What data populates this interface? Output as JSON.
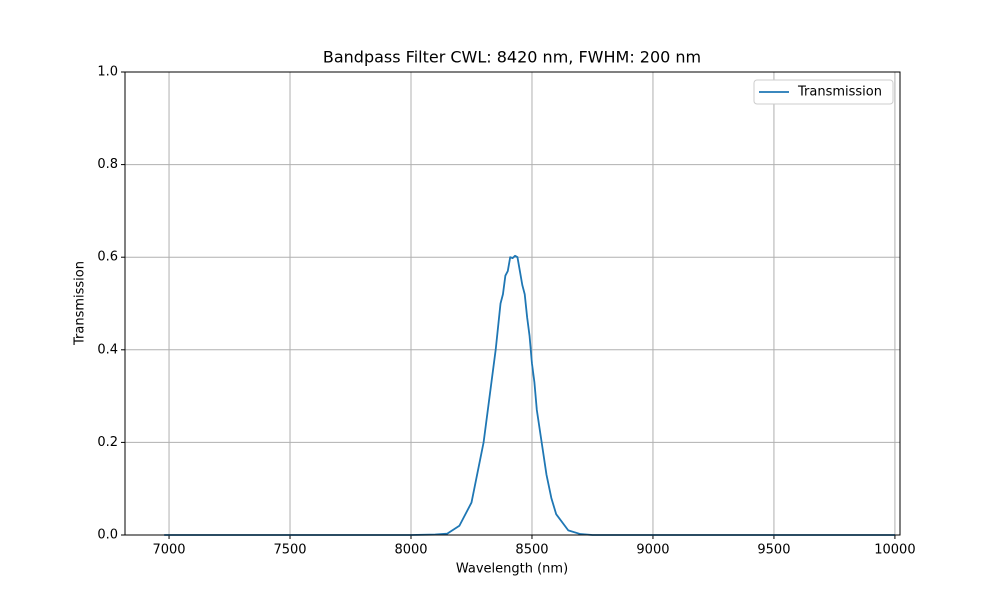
{
  "chart_data": {
    "type": "line",
    "title": "Bandpass Filter CWL: 8420 nm, FWHM: 200 nm",
    "xlabel": "Wavelength (nm)",
    "ylabel": "Transmission",
    "x": [
      6980,
      7500,
      8000,
      8100,
      8150,
      8200,
      8250,
      8300,
      8330,
      8350,
      8370,
      8380,
      8390,
      8400,
      8410,
      8420,
      8430,
      8440,
      8450,
      8460,
      8470,
      8480,
      8490,
      8500,
      8510,
      8520,
      8540,
      8560,
      8580,
      8600,
      8650,
      8700,
      8750,
      9000,
      9500,
      10000
    ],
    "series": [
      {
        "name": "Transmission",
        "color": "#1f77b4",
        "values": [
          0,
          0,
          0,
          0.001,
          0.003,
          0.02,
          0.07,
          0.2,
          0.32,
          0.4,
          0.5,
          0.52,
          0.56,
          0.57,
          0.6,
          0.598,
          0.603,
          0.6,
          0.57,
          0.54,
          0.52,
          0.47,
          0.43,
          0.37,
          0.33,
          0.27,
          0.2,
          0.13,
          0.08,
          0.045,
          0.01,
          0.002,
          0,
          0,
          0,
          0
        ]
      }
    ],
    "xlim": [
      6818,
      10021
    ],
    "ylim": [
      0,
      1
    ],
    "xticks": [
      7000,
      7500,
      8000,
      8500,
      9000,
      9500,
      10000
    ],
    "yticks": [
      {
        "value": 0,
        "label": "0.0"
      },
      0.2,
      0.4,
      0.6,
      0.8,
      {
        "value": 1,
        "label": "1.0"
      }
    ],
    "grid": true,
    "legend": "upper right"
  }
}
